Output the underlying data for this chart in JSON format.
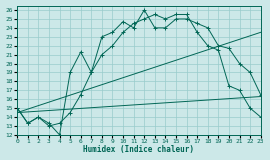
{
  "xlabel": "Humidex (Indice chaleur)",
  "xlim": [
    0,
    23
  ],
  "ylim": [
    12,
    26.5
  ],
  "yticks": [
    12,
    13,
    14,
    15,
    16,
    17,
    18,
    19,
    20,
    21,
    22,
    23,
    24,
    25,
    26
  ],
  "xticks": [
    0,
    1,
    2,
    3,
    4,
    5,
    6,
    7,
    8,
    9,
    10,
    11,
    12,
    13,
    14,
    15,
    16,
    17,
    18,
    19,
    20,
    21,
    22,
    23
  ],
  "bg_color": "#cce8e8",
  "grid_color": "#99cccc",
  "line_color": "#006655",
  "series1_x": [
    0,
    1,
    2,
    3,
    4,
    5,
    6,
    7,
    8,
    9,
    10,
    11,
    12,
    13,
    14,
    15,
    16,
    17,
    18,
    19,
    20,
    21,
    22,
    23
  ],
  "series1_y": [
    15.0,
    13.3,
    14.0,
    13.3,
    12.0,
    19.0,
    21.3,
    19.0,
    23.0,
    23.5,
    24.7,
    24.0,
    26.0,
    24.0,
    24.0,
    25.0,
    25.0,
    24.5,
    24.0,
    22.0,
    21.7,
    20.0,
    19.0,
    16.5
  ],
  "series2_x": [
    0,
    1,
    2,
    3,
    4,
    5,
    6,
    7,
    8,
    9,
    10,
    11,
    12,
    13,
    14,
    15,
    16,
    17,
    18,
    19,
    20,
    21,
    22,
    23
  ],
  "series2_y": [
    15.0,
    13.3,
    14.0,
    13.0,
    13.3,
    14.5,
    16.5,
    19.0,
    21.0,
    22.0,
    23.5,
    24.5,
    25.0,
    25.5,
    25.0,
    25.5,
    25.5,
    23.5,
    22.0,
    21.5,
    17.5,
    17.0,
    15.0,
    14.0
  ],
  "trend1_x": [
    0,
    23
  ],
  "trend1_y": [
    14.5,
    16.3
  ],
  "trend2_x": [
    0,
    23
  ],
  "trend2_y": [
    14.5,
    23.5
  ]
}
